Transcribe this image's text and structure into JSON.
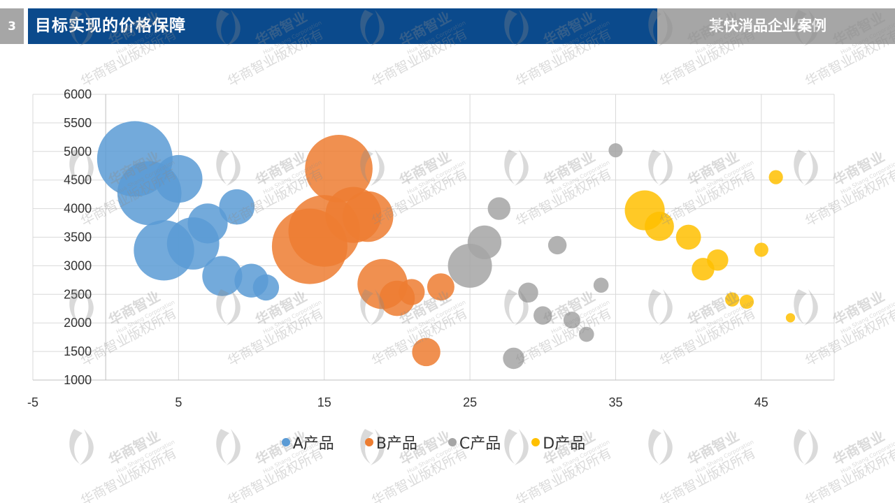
{
  "header": {
    "slide_number": "3",
    "title": "目标实现的价格保障",
    "case_label": "某快消品企业案例"
  },
  "colors": {
    "header_blue": "#0b4a8c",
    "header_gray": "#a6a6a6"
  },
  "chart_data": {
    "type": "scatter",
    "variant": "bubble",
    "title": "",
    "xlabel": "",
    "ylabel": "",
    "xlim": [
      -5,
      50
    ],
    "ylim": [
      1000,
      6000
    ],
    "x_ticks": [
      -5,
      5,
      15,
      25,
      35,
      45
    ],
    "y_ticks": [
      1000,
      1500,
      2000,
      2500,
      3000,
      3500,
      4000,
      4500,
      5000,
      5500,
      6000
    ],
    "grid": true,
    "legend_position": "bottom",
    "series": [
      {
        "name": "A产品",
        "color": "#5b9bd5",
        "points": [
          {
            "x": 2,
            "y": 4870,
            "size": 100
          },
          {
            "x": 3,
            "y": 4270,
            "size": 72
          },
          {
            "x": 5,
            "y": 4520,
            "size": 40
          },
          {
            "x": 4,
            "y": 3270,
            "size": 64
          },
          {
            "x": 6,
            "y": 3390,
            "size": 48
          },
          {
            "x": 7,
            "y": 3740,
            "size": 28
          },
          {
            "x": 8,
            "y": 2820,
            "size": 28
          },
          {
            "x": 9,
            "y": 4030,
            "size": 22
          },
          {
            "x": 10,
            "y": 2740,
            "size": 20
          },
          {
            "x": 11,
            "y": 2620,
            "size": 12
          }
        ]
      },
      {
        "name": "B产品",
        "color": "#ed7d31",
        "points": [
          {
            "x": 16,
            "y": 4700,
            "size": 80
          },
          {
            "x": 14,
            "y": 3340,
            "size": 100
          },
          {
            "x": 15,
            "y": 3610,
            "size": 90
          },
          {
            "x": 17,
            "y": 3890,
            "size": 55
          },
          {
            "x": 18,
            "y": 3860,
            "size": 45
          },
          {
            "x": 19,
            "y": 2680,
            "size": 44
          },
          {
            "x": 20,
            "y": 2430,
            "size": 22
          },
          {
            "x": 21,
            "y": 2540,
            "size": 12
          },
          {
            "x": 22,
            "y": 1490,
            "size": 14
          },
          {
            "x": 23,
            "y": 2630,
            "size": 13
          }
        ]
      },
      {
        "name": "C产品",
        "color": "#a5a5a5",
        "points": [
          {
            "x": 25,
            "y": 3000,
            "size": 34
          },
          {
            "x": 26,
            "y": 3410,
            "size": 20
          },
          {
            "x": 27,
            "y": 4000,
            "size": 9
          },
          {
            "x": 28,
            "y": 1380,
            "size": 8
          },
          {
            "x": 29,
            "y": 2530,
            "size": 7
          },
          {
            "x": 30,
            "y": 2130,
            "size": 6
          },
          {
            "x": 31,
            "y": 3360,
            "size": 6
          },
          {
            "x": 32,
            "y": 2050,
            "size": 5
          },
          {
            "x": 33,
            "y": 1800,
            "size": 4
          },
          {
            "x": 34,
            "y": 2660,
            "size": 4
          },
          {
            "x": 35,
            "y": 5020,
            "size": 3.5
          }
        ]
      },
      {
        "name": "D产品",
        "color": "#ffc000",
        "points": [
          {
            "x": 37,
            "y": 3970,
            "size": 28
          },
          {
            "x": 38,
            "y": 3690,
            "size": 15
          },
          {
            "x": 40,
            "y": 3500,
            "size": 11
          },
          {
            "x": 41,
            "y": 2940,
            "size": 9
          },
          {
            "x": 42,
            "y": 3100,
            "size": 8
          },
          {
            "x": 43,
            "y": 2410,
            "size": 3.5
          },
          {
            "x": 44,
            "y": 2370,
            "size": 3.5
          },
          {
            "x": 45,
            "y": 3280,
            "size": 3.5
          },
          {
            "x": 46,
            "y": 4550,
            "size": 3.5
          },
          {
            "x": 47,
            "y": 2090,
            "size": 1.5
          }
        ]
      }
    ]
  },
  "watermark": {
    "text": "华商智业",
    "sub_text": "Hua Shang Corporation",
    "rights_text": "华商智业版权所有"
  }
}
